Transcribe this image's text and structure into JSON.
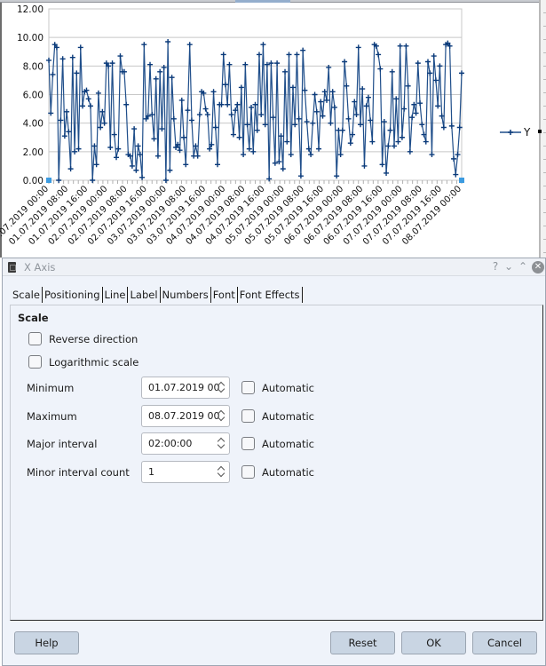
{
  "sheet": {
    "legend_label": "Y"
  },
  "chart_data": {
    "type": "line",
    "title": "",
    "xlabel": "",
    "ylabel": "",
    "ylim": [
      0,
      12
    ],
    "yticks": [
      "0.00",
      "2.00",
      "4.00",
      "6.00",
      "8.00",
      "10.00",
      "12.00"
    ],
    "grid": true,
    "legend_position": "right",
    "marker": "plus",
    "line_color": "#1f4e8a",
    "x_tick_labels": [
      "01.07.2019 00:00",
      "01.07.2019 08:00",
      "01.07.2019 16:00",
      "02.07.2019 00:00",
      "02.07.2019 08:00",
      "02.07.2019 16:00",
      "03.07.2019 00:00",
      "03.07.2019 08:00",
      "03.07.2019 16:00",
      "04.07.2019 00:00",
      "04.07.2019 08:00",
      "04.07.2019 16:00",
      "05.07.2019 00:00",
      "05.07.2019 08:00",
      "05.07.2019 16:00",
      "06.07.2019 00:00",
      "06.07.2019 08:00",
      "06.07.2019 16:00",
      "07.07.2019 00:00",
      "07.07.2019 08:00",
      "07.07.2019 16:00",
      "08.07.2019 00:00"
    ],
    "series": [
      {
        "name": "Y",
        "values": [
          8.4,
          4.7,
          7.4,
          9.5,
          9.3,
          0.0,
          4.2,
          8.5,
          3.1,
          4.8,
          3.4,
          0.8,
          8.6,
          2.0,
          7.5,
          2.2,
          9.3,
          5.2,
          6.2,
          6.3,
          5.7,
          5.2,
          0.0,
          2.4,
          1.1,
          6.1,
          3.7,
          4.8,
          4.0,
          8.2,
          8.0,
          2.3,
          8.2,
          3.2,
          1.6,
          2.2,
          8.7,
          7.6,
          7.6,
          5.3,
          1.8,
          1.7,
          1.0,
          3.6,
          0.7,
          2.4,
          1.8,
          0.2,
          9.5,
          4.3,
          4.5,
          8.1,
          4.6,
          2.9,
          7.1,
          1.7,
          7.6,
          3.6,
          7.9,
          0.0,
          9.7,
          0.7,
          7.2,
          4.3,
          2.3,
          2.5,
          2.1,
          5.6,
          3.0,
          1.1,
          4.9,
          9.5,
          4.2,
          1.7,
          2.4,
          1.7,
          4.6,
          6.2,
          6.1,
          5.0,
          4.6,
          2.2,
          2.5,
          6.2,
          3.7,
          1.1,
          5.3,
          5.3,
          8.8,
          6.7,
          5.3,
          8.1,
          4.6,
          3.2,
          4.9,
          5.3,
          3.0,
          6.5,
          1.8,
          8.1,
          3.9,
          2.2,
          5.1,
          2.0,
          5.3,
          3.5,
          8.8,
          4.6,
          9.5,
          3.9,
          8.1,
          0.1,
          8.2,
          4.4,
          1.2,
          8.2,
          1.3,
          3.1,
          0.8,
          7.6,
          2.7,
          8.8,
          1.8,
          6.5,
          3.9,
          8.8,
          4.3,
          0.3,
          9.1,
          6.3,
          4.1,
          2.2,
          1.8,
          4.0,
          6.0,
          4.8,
          2.2,
          5.5,
          4.5,
          6.2,
          5.6,
          7.9,
          4.0,
          6.2,
          5.1,
          0.3,
          3.5,
          1.8,
          3.5,
          8.3,
          6.6,
          4.3,
          2.6,
          3.2,
          5.5,
          4.6,
          9.3,
          3.9,
          6.4,
          1.0,
          5.2,
          5.8,
          4.2,
          2.7,
          9.5,
          9.4,
          8.8,
          7.8,
          1.1,
          4.1,
          0.5,
          2.4,
          3.5,
          7.6,
          2.4,
          5.7,
          2.7,
          9.4,
          3.0,
          5.0,
          9.4,
          6.6,
          2.0,
          4.4,
          5.3,
          4.7,
          8.2,
          5.4,
          3.9,
          3.2,
          2.7,
          8.3,
          7.5,
          1.8,
          8.7,
          7.0,
          5.2,
          8.0,
          4.5,
          3.7,
          9.5,
          9.6,
          9.4,
          3.8,
          1.5,
          0.4,
          1.8,
          3.7,
          7.5
        ]
      }
    ]
  },
  "dialog": {
    "title": "X Axis",
    "titlebar_buttons": {
      "help": "?",
      "minimize": "⌄",
      "maximize": "⌃",
      "close": "✕"
    },
    "tabs": [
      {
        "label": "Scale",
        "active": true
      },
      {
        "label": "Positioning",
        "active": false
      },
      {
        "label": "Line",
        "active": false
      },
      {
        "label": "Label",
        "active": false
      },
      {
        "label": "Numbers",
        "active": false
      },
      {
        "label": "Font",
        "active": false
      },
      {
        "label": "Font Effects",
        "active": false
      }
    ],
    "section_title": "Scale",
    "options": {
      "reverse_direction": {
        "label": "Reverse direction",
        "checked": false
      },
      "logarithmic_scale": {
        "label": "Logarithmic scale",
        "checked": false
      }
    },
    "fields": [
      {
        "label": "Minimum",
        "value": "01.07.2019 00:00",
        "automatic_label": "Automatic",
        "automatic_checked": false
      },
      {
        "label": "Maximum",
        "value": "08.07.2019 00:00",
        "automatic_label": "Automatic",
        "automatic_checked": false
      },
      {
        "label": "Major interval",
        "value": "02:00:00",
        "automatic_label": "Automatic",
        "automatic_checked": false
      },
      {
        "label": "Minor interval count",
        "value": "1",
        "automatic_label": "Automatic",
        "automatic_checked": false
      }
    ],
    "buttons": {
      "help": "Help",
      "reset": "Reset",
      "ok": "OK",
      "cancel": "Cancel"
    }
  }
}
